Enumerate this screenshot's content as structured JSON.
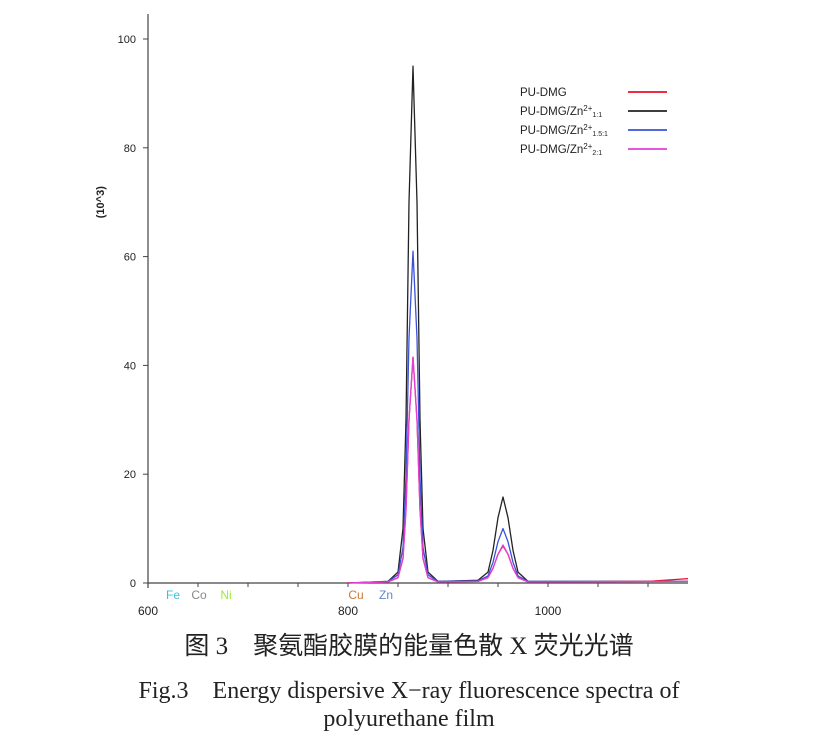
{
  "chart_data": {
    "type": "line",
    "ylabel": "(10^3)",
    "xlim": [
      600,
      1140
    ],
    "ylim": [
      0,
      100
    ],
    "xticks": [
      600,
      800,
      1000
    ],
    "yticks": [
      0,
      20,
      40,
      60,
      80,
      100
    ],
    "grid": false,
    "legend_position": "top-right",
    "element_labels": [
      {
        "text": "Fe",
        "x": 625,
        "color": "#3cc0e0"
      },
      {
        "text": "Co",
        "x": 651,
        "color": "#888888"
      },
      {
        "text": "Ni",
        "x": 678,
        "color": "#99ee33"
      },
      {
        "text": "Cu",
        "x": 808,
        "color": "#c87a3a"
      },
      {
        "text": "Zn",
        "x": 838,
        "color": "#5a8ac8"
      }
    ],
    "series": [
      {
        "name": "PU-DMG",
        "name_base": "PU-DMG",
        "name_sup": "",
        "name_sub": "",
        "color": "#e8102a",
        "points": [
          [
            800,
            0
          ],
          [
            840,
            0.2
          ],
          [
            850,
            1
          ],
          [
            855,
            4.5
          ],
          [
            858,
            13.5
          ],
          [
            861,
            30
          ],
          [
            865,
            41.5
          ],
          [
            869,
            30
          ],
          [
            872,
            13.5
          ],
          [
            875,
            4.5
          ],
          [
            880,
            1
          ],
          [
            890,
            0.2
          ],
          [
            930,
            0.3
          ],
          [
            940,
            1
          ],
          [
            945,
            2.7
          ],
          [
            950,
            5.3
          ],
          [
            955,
            6.8
          ],
          [
            960,
            5.3
          ],
          [
            965,
            2.7
          ],
          [
            970,
            1
          ],
          [
            980,
            0.2
          ],
          [
            1100,
            0.3
          ],
          [
            1140,
            0.8
          ]
        ]
      },
      {
        "name": "PU-DMG/Zn2+1:1",
        "name_base": "PU-DMG/Zn",
        "name_sup": "2+",
        "name_sub": "1:1",
        "color": "#222222",
        "points": [
          [
            800,
            0
          ],
          [
            840,
            0.3
          ],
          [
            850,
            2
          ],
          [
            855,
            10
          ],
          [
            858,
            30
          ],
          [
            861,
            70
          ],
          [
            865,
            95
          ],
          [
            869,
            70
          ],
          [
            872,
            30
          ],
          [
            875,
            10
          ],
          [
            880,
            2
          ],
          [
            890,
            0.3
          ],
          [
            930,
            0.5
          ],
          [
            940,
            2
          ],
          [
            945,
            6
          ],
          [
            950,
            12
          ],
          [
            955,
            15.8
          ],
          [
            960,
            12
          ],
          [
            965,
            6
          ],
          [
            970,
            2
          ],
          [
            980,
            0.3
          ],
          [
            1140,
            0.3
          ]
        ]
      },
      {
        "name": "PU-DMG/Zn2+1.5:1",
        "name_base": "PU-DMG/Zn",
        "name_sup": "2+",
        "name_sub": "1.5:1",
        "color": "#3a52d8",
        "points": [
          [
            800,
            0
          ],
          [
            840,
            0.3
          ],
          [
            850,
            1.5
          ],
          [
            855,
            6.5
          ],
          [
            858,
            19.5
          ],
          [
            861,
            45
          ],
          [
            865,
            61
          ],
          [
            869,
            45
          ],
          [
            872,
            19.5
          ],
          [
            875,
            6.5
          ],
          [
            880,
            1.5
          ],
          [
            890,
            0.3
          ],
          [
            930,
            0.4
          ],
          [
            940,
            1.3
          ],
          [
            945,
            3.8
          ],
          [
            950,
            7.6
          ],
          [
            955,
            10
          ],
          [
            960,
            7.6
          ],
          [
            965,
            3.8
          ],
          [
            970,
            1.3
          ],
          [
            980,
            0.3
          ],
          [
            1140,
            0.3
          ]
        ]
      },
      {
        "name": "PU-DMG/Zn2+2:1",
        "name_base": "PU-DMG/Zn",
        "name_sup": "2+",
        "name_sub": "2:1",
        "color": "#e040d8",
        "points": [
          [
            800,
            0
          ],
          [
            840,
            0.2
          ],
          [
            850,
            1
          ],
          [
            855,
            4.5
          ],
          [
            858,
            13.5
          ],
          [
            861,
            30
          ],
          [
            865,
            41.5
          ],
          [
            869,
            30
          ],
          [
            872,
            13.5
          ],
          [
            875,
            4.5
          ],
          [
            880,
            1
          ],
          [
            890,
            0.2
          ],
          [
            930,
            0.3
          ],
          [
            940,
            1
          ],
          [
            945,
            2.7
          ],
          [
            950,
            5.3
          ],
          [
            955,
            7
          ],
          [
            960,
            5.3
          ],
          [
            965,
            2.7
          ],
          [
            970,
            1
          ],
          [
            980,
            0.2
          ],
          [
            1140,
            0.3
          ]
        ]
      }
    ]
  },
  "caption": {
    "cn": "图 3　聚氨酯胶膜的能量色散 X 荧光光谱",
    "en_line1": "Fig.3　Energy dispersive X−ray fluorescence spectra of",
    "en_line2": "polyurethane film"
  }
}
